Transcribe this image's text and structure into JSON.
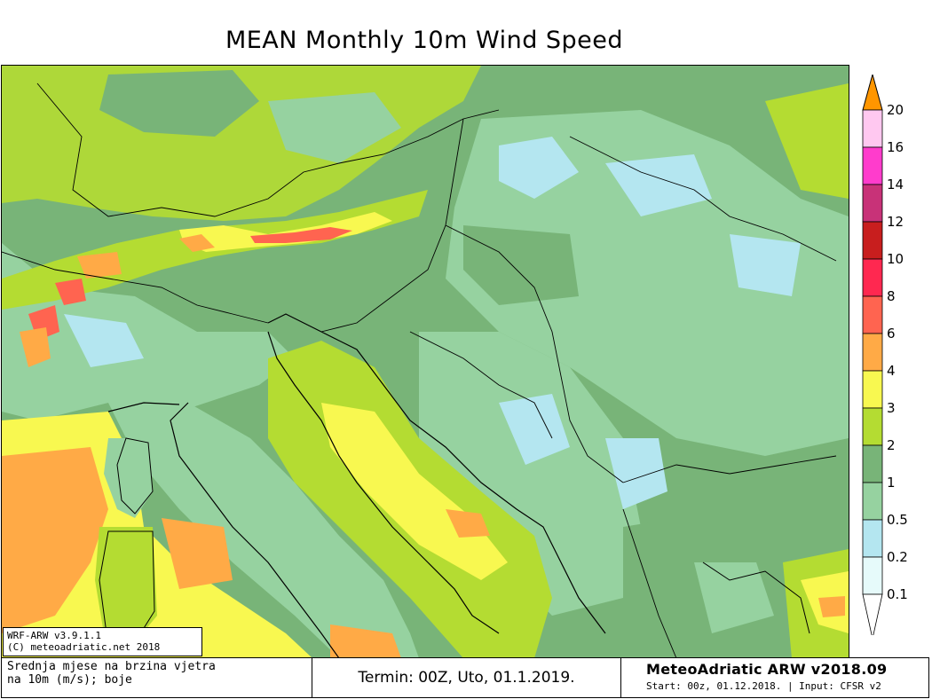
{
  "title": "MEAN Monthly 10m Wind Speed",
  "model_info": {
    "line1": "WRF-ARW v3.9.1.1",
    "line2": "(C) meteoadriatic.net 2018"
  },
  "footer": {
    "description_line1": "Srednja mjese  na brzina vjetra",
    "description_line2": "na 10m (m/s); boje",
    "termin": "Termin: 00Z, Uto, 01.1.2019.",
    "brand": "MeteoAdriatic ARW v2018.09",
    "run_info": "Start: 00z, 01.12.2018. | Input: CFSR v2"
  },
  "colorbar": {
    "unit": "m/s",
    "levels": [
      {
        "label": "20",
        "color": "#ffc8f0"
      },
      {
        "label": "16",
        "color": "#ff3ccc"
      },
      {
        "label": "14",
        "color": "#c83278"
      },
      {
        "label": "12",
        "color": "#c81e1e"
      },
      {
        "label": "10",
        "color": "#ff2850"
      },
      {
        "label": "8",
        "color": "#ff6450"
      },
      {
        "label": "6",
        "color": "#ffaa46"
      },
      {
        "label": "4",
        "color": "#f8f850"
      },
      {
        "label": "3",
        "color": "#b4dc32"
      },
      {
        "label": "2",
        "color": "#78b478"
      },
      {
        "label": "1",
        "color": "#96d2a0"
      },
      {
        "label": "0.5",
        "color": "#b4e6f0"
      },
      {
        "label": "0.2",
        "color": "#e6fafa"
      },
      {
        "label": "0.1",
        "color": "#ffffff"
      }
    ],
    "top_arrow_color": "#ff9600"
  },
  "map_colors": {
    "dominant": "#78b478",
    "calm": "#96d2a0",
    "very_calm": "#b4e6f0",
    "moderate": "#b4dc32",
    "fresh": "#f8f850",
    "strong": "#ffaa46",
    "very_strong": "#ff6450",
    "gale": "#ff2850"
  }
}
